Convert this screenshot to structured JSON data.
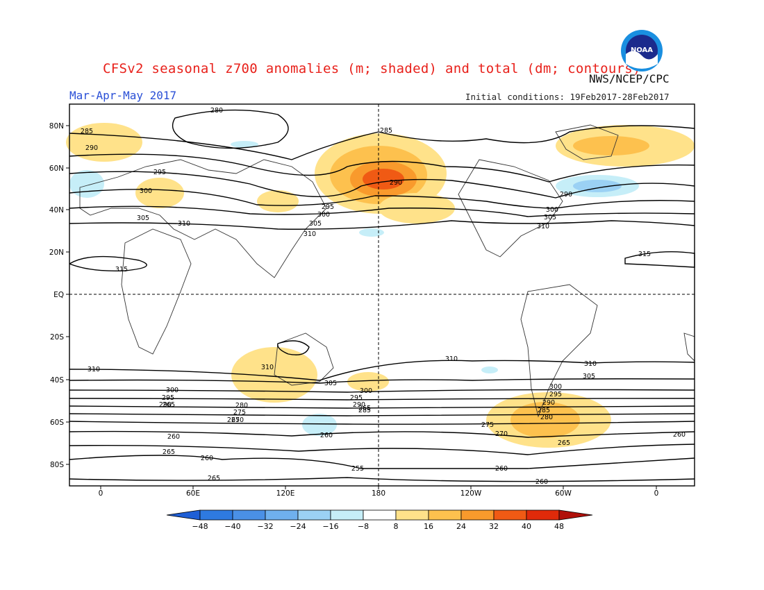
{
  "title": "CFSv2 seasonal z700 anomalies (m; shaded) and total (dm; contours)",
  "agency": "NWS/NCEP/CPC",
  "logo_text": "NOAA",
  "period": "Mar-Apr-May 2017",
  "initial_conditions": "Initial conditions: 19Feb2017-28Feb2017",
  "lat_ticks": [
    "80N",
    "60N",
    "40N",
    "20N",
    "EQ",
    "20S",
    "40S",
    "60S",
    "80S"
  ],
  "lon_ticks": [
    "0",
    "60E",
    "120E",
    "180",
    "120W",
    "60W",
    "0"
  ],
  "colorbar": {
    "labels": [
      "-48",
      "-40",
      "-32",
      "-24",
      "-16",
      "-8",
      "8",
      "16",
      "24",
      "32",
      "40",
      "48"
    ],
    "colors": [
      "#1f5fd6",
      "#2e7ae0",
      "#4a90e6",
      "#6fb0ee",
      "#9bd1f4",
      "#c6eef8",
      "#ffffff",
      "#ffe28a",
      "#fdc14e",
      "#f99a2c",
      "#f05a14",
      "#e02a0a",
      "#b0100a"
    ]
  },
  "contour_labels": {
    "north": [
      "280",
      "285",
      "290",
      "295",
      "300",
      "305",
      "310",
      "315"
    ],
    "south": [
      "310",
      "305",
      "300",
      "295",
      "290",
      "285",
      "280",
      "275",
      "270",
      "265",
      "260",
      "255"
    ]
  }
}
